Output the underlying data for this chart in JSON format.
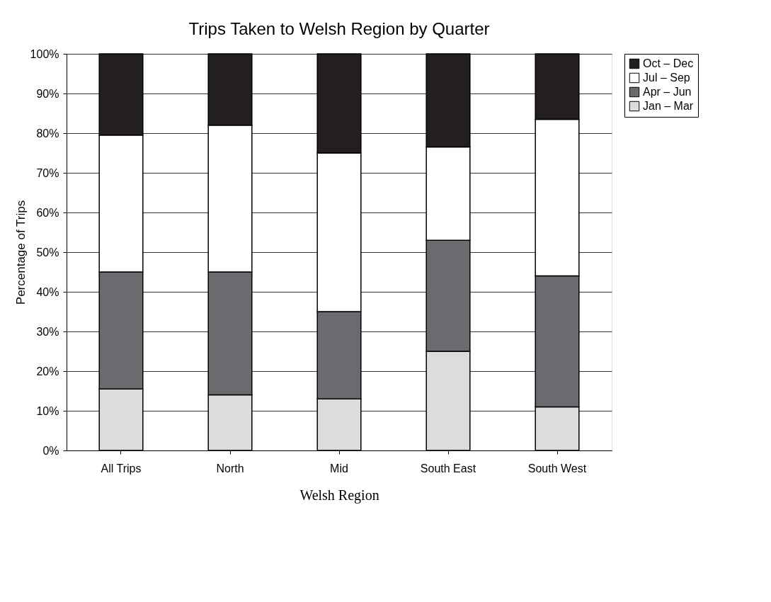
{
  "chart_data": {
    "type": "bar",
    "stacked": true,
    "title": "Trips Taken to Welsh Region by Quarter",
    "xlabel": "Welsh Region",
    "ylabel": "Percentage of Trips",
    "categories": [
      "All Trips",
      "North",
      "Mid",
      "South East",
      "South West"
    ],
    "series": [
      {
        "name": "Jan – Mar",
        "color": "#dcdcdc",
        "values": [
          15.5,
          14,
          13,
          25,
          11
        ]
      },
      {
        "name": "Apr – Jun",
        "color": "#6b6b6f",
        "values": [
          29.5,
          31,
          22,
          28,
          33
        ]
      },
      {
        "name": "Jul – Sep",
        "color": "#ffffff",
        "values": [
          34.5,
          37,
          40,
          23.5,
          39.5
        ]
      },
      {
        "name": "Oct – Dec",
        "color": "#231f20",
        "values": [
          20.5,
          18,
          25,
          23.5,
          16.5
        ]
      }
    ],
    "ylim": [
      0,
      100
    ],
    "yticks": [
      {
        "value": 0,
        "label": "0%"
      },
      {
        "value": 10,
        "label": "10%"
      },
      {
        "value": 20,
        "label": "20%"
      },
      {
        "value": 30,
        "label": "30%"
      },
      {
        "value": 40,
        "label": "40%"
      },
      {
        "value": 50,
        "label": "50%"
      },
      {
        "value": 60,
        "label": "60%"
      },
      {
        "value": 70,
        "label": "70%"
      },
      {
        "value": 80,
        "label": "80%"
      },
      {
        "value": 90,
        "label": "90%"
      },
      {
        "value": 100,
        "label": "100%"
      }
    ],
    "grid": "y",
    "legend": "right"
  }
}
